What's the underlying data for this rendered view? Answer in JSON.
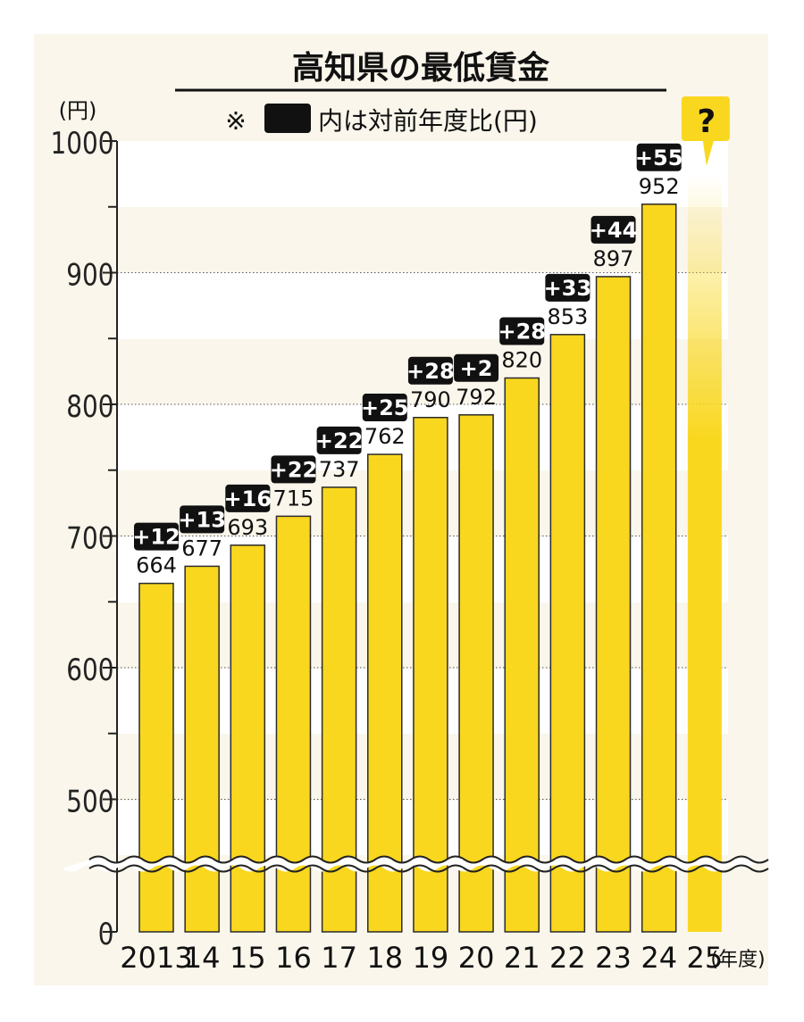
{
  "colors": {
    "panel_background": "#faf6eb",
    "band_light": "#ffffff",
    "bar_fill": "#f9d71f",
    "bar_stroke": "#2b2b2b",
    "change_label_background": "#111111",
    "change_label_text": "#ffffff",
    "question_bubble": "#f9d71f"
  },
  "chart_data": {
    "type": "bar",
    "title": "高知県の最低賃金",
    "subtitle_prefix": "※",
    "subtitle": "内は対前年度比(円)",
    "ylabel": "(円)",
    "xlabel": "(年度)",
    "ylim": [
      0,
      1000
    ],
    "axis_break_between": [
      0,
      450
    ],
    "yticks": [
      "0",
      "500",
      "600",
      "700",
      "800",
      "900",
      "1000"
    ],
    "categories": [
      "2013",
      "14",
      "15",
      "16",
      "17",
      "18",
      "19",
      "20",
      "21",
      "22",
      "23",
      "24",
      "25"
    ],
    "values": [
      664,
      677,
      693,
      715,
      737,
      762,
      790,
      792,
      820,
      853,
      897,
      952,
      null
    ],
    "value_labels": [
      "664",
      "677",
      "693",
      "715",
      "737",
      "762",
      "790",
      "792",
      "820",
      "853",
      "897",
      "952",
      ""
    ],
    "changes": [
      "+12",
      "+13",
      "+16",
      "+22",
      "+22",
      "+25",
      "+28",
      "+2",
      "+28",
      "+33",
      "+44",
      "+55",
      ""
    ],
    "unknown_label": "?",
    "grid": true
  }
}
